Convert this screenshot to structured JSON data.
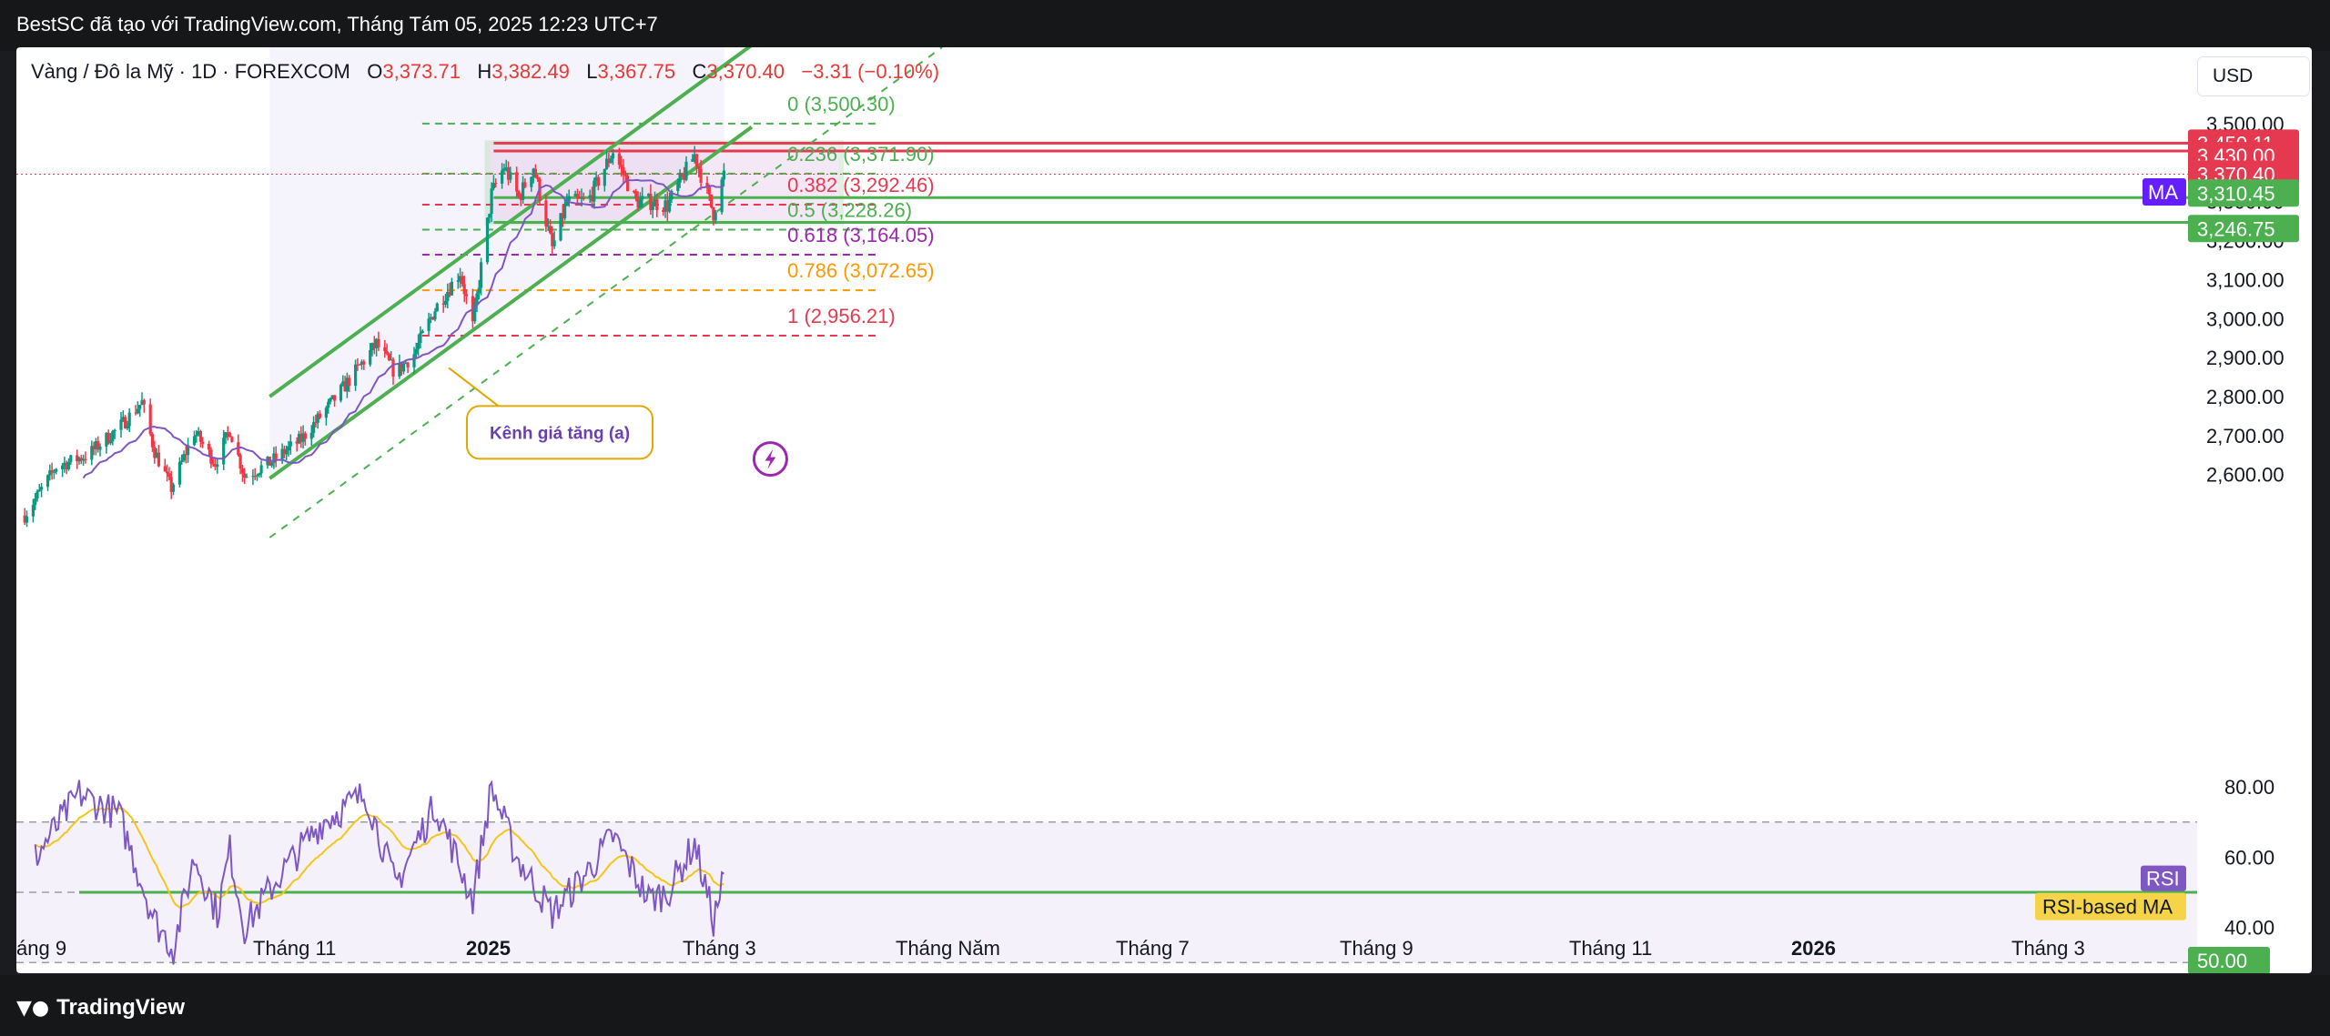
{
  "header": {
    "title": "BestSC đã tạo với TradingView.com, Tháng Tám 05, 2025 12:23 UTC+7"
  },
  "legend": {
    "symbol": "Vàng / Đô la Mỹ · 1D · FOREXCOM",
    "open_label": "O",
    "open": "3,373.71",
    "high_label": "H",
    "high": "3,382.49",
    "low_label": "L",
    "low": "3,367.75",
    "close_label": "C",
    "close": "3,370.40",
    "change": "−3.31 (−0.10%)"
  },
  "currency": "USD",
  "footer": {
    "brand": "TradingView",
    "logo_icon": "tradingview-logo-icon"
  },
  "colors": {
    "up": "#089981",
    "down": "#f23645",
    "channel": "#4caf50",
    "ma": "#7e57c2",
    "rsi": "#7e57c2",
    "rsi_ma": "#f5c518",
    "range_box": "#e1bee7",
    "level_red": "#e53950",
    "level_green": "#4caf50"
  },
  "chart_data": {
    "type": "candlestick",
    "timeframe": "1D",
    "y_range": [
      2590,
      3570
    ],
    "y_ticks": [
      "3,500.00",
      "3,400.00",
      "3,300.00",
      "3,200.00",
      "3,100.00",
      "3,000.00",
      "2,900.00",
      "2,800.00",
      "2,700.00",
      "2,600.00"
    ],
    "y_tick_values": [
      3500,
      3400,
      3300,
      3200,
      3100,
      3000,
      2900,
      2800,
      2700,
      2600
    ],
    "x_labels": [
      "áng 9",
      "Tháng 11",
      "2025",
      "Tháng 3",
      "Tháng Năm",
      "Tháng 7",
      "Tháng 9",
      "Tháng 11",
      "2026",
      "Tháng 3"
    ],
    "x_label_bold": [
      false,
      false,
      true,
      false,
      false,
      false,
      false,
      false,
      true,
      false
    ],
    "price_anchors": [
      {
        "date": "2024-09-05",
        "price": 2495
      },
      {
        "date": "2024-09-20",
        "price": 2620
      },
      {
        "date": "2024-10-05",
        "price": 2650
      },
      {
        "date": "2024-10-20",
        "price": 2720
      },
      {
        "date": "2024-10-31",
        "price": 2785
      },
      {
        "date": "2024-11-06",
        "price": 2660
      },
      {
        "date": "2024-11-14",
        "price": 2565
      },
      {
        "date": "2024-11-25",
        "price": 2710
      },
      {
        "date": "2024-12-05",
        "price": 2630
      },
      {
        "date": "2024-12-12",
        "price": 2715
      },
      {
        "date": "2024-12-19",
        "price": 2595
      },
      {
        "date": "2024-12-31",
        "price": 2630
      },
      {
        "date": "2025-01-15",
        "price": 2690
      },
      {
        "date": "2025-02-01",
        "price": 2800
      },
      {
        "date": "2025-02-20",
        "price": 2935
      },
      {
        "date": "2025-03-01",
        "price": 2860
      },
      {
        "date": "2025-03-10",
        "price": 2910
      },
      {
        "date": "2025-03-20",
        "price": 3025
      },
      {
        "date": "2025-04-01",
        "price": 3120
      },
      {
        "date": "2025-04-07",
        "price": 2980
      },
      {
        "date": "2025-04-16",
        "price": 3320
      },
      {
        "date": "2025-04-22",
        "price": 3390
      },
      {
        "date": "2025-04-29",
        "price": 3310
      },
      {
        "date": "2025-05-06",
        "price": 3390
      },
      {
        "date": "2025-05-15",
        "price": 3180
      },
      {
        "date": "2025-05-22",
        "price": 3300
      },
      {
        "date": "2025-06-01",
        "price": 3300
      },
      {
        "date": "2025-06-13",
        "price": 3430
      },
      {
        "date": "2025-06-24",
        "price": 3300
      },
      {
        "date": "2025-06-30",
        "price": 3300
      },
      {
        "date": "2025-07-09",
        "price": 3290
      },
      {
        "date": "2025-07-22",
        "price": 3420
      },
      {
        "date": "2025-07-31",
        "price": 3270
      },
      {
        "date": "2025-08-05",
        "price": 3370
      }
    ],
    "last_date": "2025-08-05",
    "last_price": 3370.4,
    "fibonacci": {
      "levels": [
        {
          "ratio": "0",
          "price": 3500.3,
          "label": "0 (3,500.30)",
          "color": "#4caf50"
        },
        {
          "ratio": "0.236",
          "price": 3371.9,
          "label": "0.236 (3,371.90)",
          "color": "#4caf50"
        },
        {
          "ratio": "0.382",
          "price": 3292.46,
          "label": "0.382 (3,292.46)",
          "color": "#e53950"
        },
        {
          "ratio": "0.5",
          "price": 3228.26,
          "label": "0.5 (3,228.26)",
          "color": "#4caf50"
        },
        {
          "ratio": "0.618",
          "price": 3164.05,
          "label": "0.618 (3,164.05)",
          "color": "#9c27b0"
        },
        {
          "ratio": "0.786",
          "price": 3072.65,
          "label": "0.786 (3,072.65)",
          "color": "#ff9800"
        },
        {
          "ratio": "1",
          "price": 2956.21,
          "label": "1 (2,956.21)",
          "color": "#e53950"
        }
      ],
      "start_date": "2025-04-22",
      "end_date": "2025-07-31"
    },
    "channel": {
      "label": "Kênh giá tăng (a)",
      "lower_start": {
        "date": "2024-12-31",
        "price": 2590
      },
      "lower_end": {
        "date": "2025-07-31",
        "price": 3420
      },
      "upper_start": {
        "date": "2024-12-31",
        "price": 2800
      },
      "width": 340,
      "label_date": "2025-03-20",
      "label_price": 2855
    },
    "range_box": {
      "start_date": "2025-04-14",
      "end_date": "2025-09-30",
      "top": 3450.11,
      "bottom": 3246.75
    },
    "horizontal_levels": [
      {
        "price": 3450.11,
        "label": "3,450.11",
        "color": "#e53950"
      },
      {
        "price": 3430.0,
        "label": "3,430.00",
        "color": "#e53950"
      },
      {
        "price": 3310.45,
        "label": "3,310.45",
        "color": "#4caf50"
      },
      {
        "price": 3246.75,
        "label": "3,246.75",
        "color": "#4caf50"
      }
    ],
    "last_price_label": "3,370.40",
    "ma_label": "MA",
    "rsi": {
      "label": "RSI",
      "ma_label": "RSI-based MA",
      "y_range": [
        28,
        86
      ],
      "y_ticks": [
        "80.00",
        "60.00",
        "40.00"
      ],
      "y_tick_values": [
        80,
        60,
        40
      ],
      "upper_band": 70,
      "mid_band": 50,
      "lower_band": 30,
      "green_level": 50,
      "green_level_label": "50.00",
      "current_rsi": 54,
      "anchors": [
        {
          "date": "2024-09-10",
          "v": 60
        },
        {
          "date": "2024-10-01",
          "v": 78
        },
        {
          "date": "2024-10-20",
          "v": 72
        },
        {
          "date": "2024-11-06",
          "v": 42
        },
        {
          "date": "2024-11-15",
          "v": 34
        },
        {
          "date": "2024-11-25",
          "v": 60
        },
        {
          "date": "2024-12-06",
          "v": 44
        },
        {
          "date": "2024-12-12",
          "v": 62
        },
        {
          "date": "2024-12-19",
          "v": 40
        },
        {
          "date": "2025-01-05",
          "v": 55
        },
        {
          "date": "2025-01-25",
          "v": 70
        },
        {
          "date": "2025-02-15",
          "v": 78
        },
        {
          "date": "2025-03-01",
          "v": 52
        },
        {
          "date": "2025-03-20",
          "v": 75
        },
        {
          "date": "2025-04-07",
          "v": 48
        },
        {
          "date": "2025-04-16",
          "v": 80
        },
        {
          "date": "2025-04-28",
          "v": 60
        },
        {
          "date": "2025-05-15",
          "v": 44
        },
        {
          "date": "2025-06-01",
          "v": 56
        },
        {
          "date": "2025-06-13",
          "v": 66
        },
        {
          "date": "2025-06-30",
          "v": 48
        },
        {
          "date": "2025-07-09",
          "v": 50
        },
        {
          "date": "2025-07-22",
          "v": 64
        },
        {
          "date": "2025-07-31",
          "v": 42
        },
        {
          "date": "2025-08-05",
          "v": 54
        }
      ]
    }
  }
}
